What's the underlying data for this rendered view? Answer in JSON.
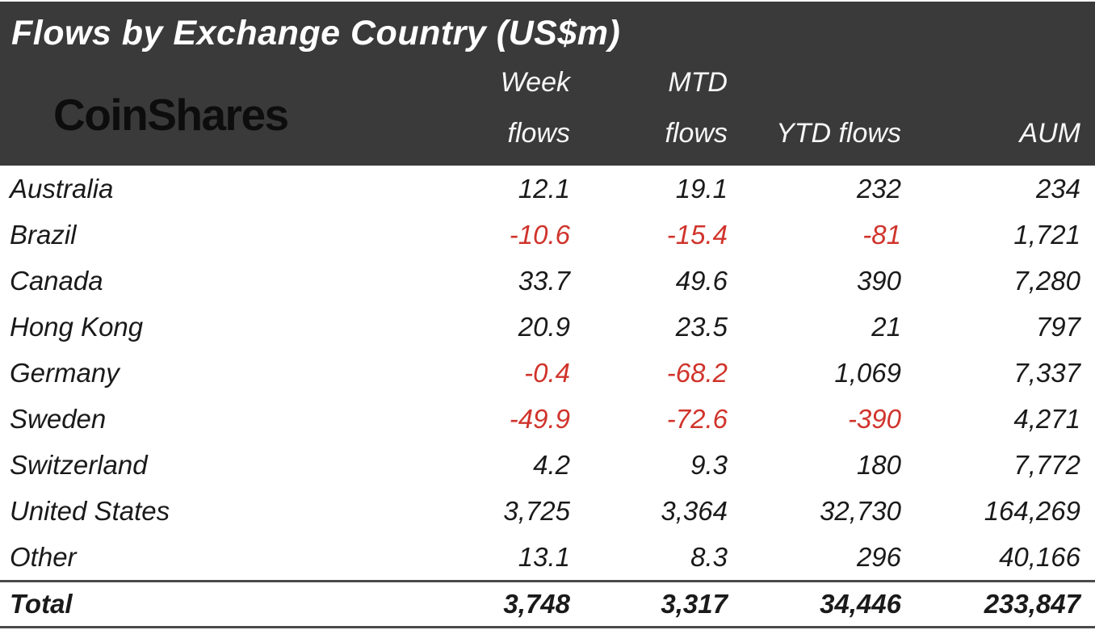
{
  "title": "Flows by Exchange Country (US$m)",
  "logo": "CoinShares",
  "colors": {
    "header_bg": "#3a3a3a",
    "negative_text": "#d0342c",
    "body_text": "#1a1a1a",
    "header_text": "#ffffff"
  },
  "column_headers": {
    "week": "Week\nflows",
    "mtd": "MTD\nflows",
    "ytd": "YTD flows",
    "aum": "AUM"
  },
  "rows": [
    {
      "country": "Australia",
      "week": "12.1",
      "mtd": "19.1",
      "ytd": "232",
      "aum": "234"
    },
    {
      "country": "Brazil",
      "week": "-10.6",
      "mtd": "-15.4",
      "ytd": "-81",
      "aum": "1,721"
    },
    {
      "country": "Canada",
      "week": "33.7",
      "mtd": "49.6",
      "ytd": "390",
      "aum": "7,280"
    },
    {
      "country": "Hong Kong",
      "week": "20.9",
      "mtd": "23.5",
      "ytd": "21",
      "aum": "797"
    },
    {
      "country": "Germany",
      "week": "-0.4",
      "mtd": "-68.2",
      "ytd": "1,069",
      "aum": "7,337"
    },
    {
      "country": "Sweden",
      "week": "-49.9",
      "mtd": "-72.6",
      "ytd": "-390",
      "aum": "4,271"
    },
    {
      "country": "Switzerland",
      "week": "4.2",
      "mtd": "9.3",
      "ytd": "180",
      "aum": "7,772"
    },
    {
      "country": "United States",
      "week": "3,725",
      "mtd": "3,364",
      "ytd": "32,730",
      "aum": "164,269"
    },
    {
      "country": "Other",
      "week": "13.1",
      "mtd": "8.3",
      "ytd": "296",
      "aum": "40,166"
    }
  ],
  "total": {
    "country": "Total",
    "week": "3,748",
    "mtd": "3,317",
    "ytd": "34,446",
    "aum": "233,847"
  }
}
